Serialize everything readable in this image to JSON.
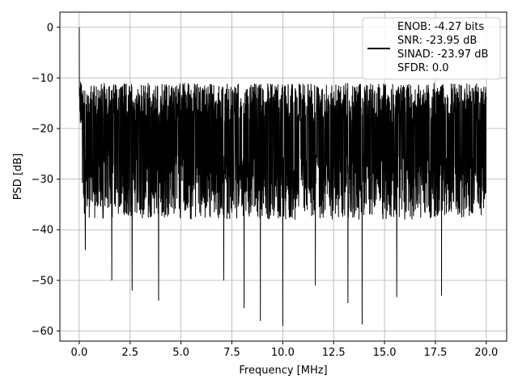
{
  "chart_data": {
    "type": "line",
    "title": "",
    "xlabel": "Frequency [MHz]",
    "ylabel": "PSD [dB]",
    "xlim": [
      -0.95,
      21.0
    ],
    "ylim": [
      -62.0,
      3.0
    ],
    "xticks": [
      0.0,
      2.5,
      5.0,
      7.5,
      10.0,
      12.5,
      15.0,
      17.5,
      20.0
    ],
    "xtick_labels": [
      "0.0",
      "2.5",
      "5.0",
      "7.5",
      "10.0",
      "12.5",
      "15.0",
      "17.5",
      "20.0"
    ],
    "yticks": [
      0,
      -10,
      -20,
      -30,
      -40,
      -50,
      -60
    ],
    "ytick_labels": [
      "0",
      "−10",
      "−20",
      "−30",
      "−40",
      "−50",
      "−60"
    ],
    "grid": true,
    "legend_position": "top-right",
    "legend_lines": [
      "ENOB: -4.27 bits",
      "SNR: -23.95 dB",
      "SINAD: -23.97 dB",
      "SFDR: 0.0"
    ],
    "series": [
      {
        "color": "#000000",
        "x_range": [
          0.0,
          20.0
        ],
        "peak": {
          "x": 0.0,
          "y": 0.0
        },
        "envelope": {
          "upper_typical": -11.0,
          "lower_typical": -38.0,
          "median": -22.0
        },
        "notable_dips": [
          {
            "x": 0.3,
            "y": -44.0
          },
          {
            "x": 1.6,
            "y": -50.0
          },
          {
            "x": 2.6,
            "y": -52.0
          },
          {
            "x": 3.9,
            "y": -54.0
          },
          {
            "x": 7.1,
            "y": -50.0
          },
          {
            "x": 8.1,
            "y": -55.5
          },
          {
            "x": 8.9,
            "y": -58.0
          },
          {
            "x": 10.0,
            "y": -59.0
          },
          {
            "x": 11.6,
            "y": -51.0
          },
          {
            "x": 13.2,
            "y": -54.5
          },
          {
            "x": 13.9,
            "y": -58.7
          },
          {
            "x": 15.6,
            "y": -53.3
          },
          {
            "x": 17.8,
            "y": -53.0
          }
        ]
      }
    ]
  }
}
